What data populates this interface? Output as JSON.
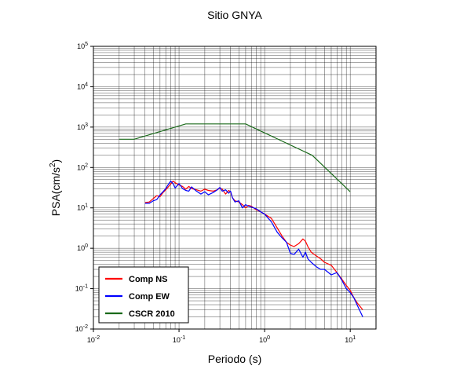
{
  "chart_data": {
    "type": "line",
    "title": "Sitio GNYA",
    "xlabel": "Periodo (s)",
    "ylabel": "PSA(cm/s²)",
    "x_scale": "log",
    "y_scale": "log",
    "xlim": [
      0.01,
      20
    ],
    "ylim": [
      0.01,
      100000
    ],
    "x_tick_labels": [
      {
        "base": "10",
        "exp": "-2",
        "value": 0.01
      },
      {
        "base": "10",
        "exp": "-1",
        "value": 0.1
      },
      {
        "base": "10",
        "exp": "0",
        "value": 1
      },
      {
        "base": "10",
        "exp": "1",
        "value": 10
      }
    ],
    "y_tick_labels": [
      {
        "base": "10",
        "exp": "-2",
        "value": 0.01
      },
      {
        "base": "10",
        "exp": "-1",
        "value": 0.1
      },
      {
        "base": "10",
        "exp": "0",
        "value": 1
      },
      {
        "base": "10",
        "exp": "1",
        "value": 10
      },
      {
        "base": "10",
        "exp": "2",
        "value": 100
      },
      {
        "base": "10",
        "exp": "3",
        "value": 1000
      },
      {
        "base": "10",
        "exp": "4",
        "value": 10000
      },
      {
        "base": "10",
        "exp": "5",
        "value": 100000
      }
    ],
    "grid": true,
    "legend_position": "bottom-left",
    "series": [
      {
        "name": "Comp NS",
        "color": "#ff0000",
        "points": [
          [
            0.04,
            13.5
          ],
          [
            0.045,
            14
          ],
          [
            0.05,
            17
          ],
          [
            0.055,
            20
          ],
          [
            0.06,
            19
          ],
          [
            0.065,
            24
          ],
          [
            0.07,
            28
          ],
          [
            0.075,
            33
          ],
          [
            0.08,
            39
          ],
          [
            0.085,
            46
          ],
          [
            0.09,
            42
          ],
          [
            0.1,
            37
          ],
          [
            0.11,
            34
          ],
          [
            0.12,
            29
          ],
          [
            0.13,
            34
          ],
          [
            0.14,
            30
          ],
          [
            0.16,
            28
          ],
          [
            0.18,
            26
          ],
          [
            0.2,
            29
          ],
          [
            0.22,
            27
          ],
          [
            0.25,
            26
          ],
          [
            0.28,
            28
          ],
          [
            0.3,
            31
          ],
          [
            0.32,
            29
          ],
          [
            0.35,
            22
          ],
          [
            0.38,
            27
          ],
          [
            0.4,
            25
          ],
          [
            0.42,
            18
          ],
          [
            0.45,
            15
          ],
          [
            0.5,
            14
          ],
          [
            0.55,
            12
          ],
          [
            0.6,
            10
          ],
          [
            0.65,
            11.5
          ],
          [
            0.7,
            11
          ],
          [
            0.8,
            9
          ],
          [
            0.9,
            8
          ],
          [
            1.0,
            7
          ],
          [
            1.2,
            5.5
          ],
          [
            1.4,
            3.2
          ],
          [
            1.6,
            2.0
          ],
          [
            1.8,
            1.4
          ],
          [
            2.0,
            1.2
          ],
          [
            2.2,
            1.1
          ],
          [
            2.5,
            1.3
          ],
          [
            2.8,
            1.7
          ],
          [
            3.0,
            1.5
          ],
          [
            3.2,
            1.1
          ],
          [
            3.5,
            0.8
          ],
          [
            4.0,
            0.65
          ],
          [
            4.5,
            0.55
          ],
          [
            5.0,
            0.45
          ],
          [
            6.0,
            0.38
          ],
          [
            7.0,
            0.25
          ],
          [
            8.0,
            0.17
          ],
          [
            9.0,
            0.12
          ],
          [
            10.0,
            0.09
          ],
          [
            11.0,
            0.06
          ],
          [
            12.0,
            0.045
          ],
          [
            14.0,
            0.03
          ]
        ]
      },
      {
        "name": "Comp EW",
        "color": "#0000ff",
        "points": [
          [
            0.04,
            13
          ],
          [
            0.045,
            13
          ],
          [
            0.05,
            15
          ],
          [
            0.055,
            16
          ],
          [
            0.06,
            21
          ],
          [
            0.065,
            25
          ],
          [
            0.07,
            30
          ],
          [
            0.075,
            38
          ],
          [
            0.08,
            46
          ],
          [
            0.085,
            40
          ],
          [
            0.09,
            31
          ],
          [
            0.1,
            40
          ],
          [
            0.11,
            30
          ],
          [
            0.12,
            27
          ],
          [
            0.13,
            26
          ],
          [
            0.14,
            33
          ],
          [
            0.16,
            26
          ],
          [
            0.18,
            22
          ],
          [
            0.2,
            25
          ],
          [
            0.22,
            21
          ],
          [
            0.25,
            24
          ],
          [
            0.28,
            28
          ],
          [
            0.3,
            32
          ],
          [
            0.32,
            26
          ],
          [
            0.35,
            28
          ],
          [
            0.38,
            23
          ],
          [
            0.4,
            26
          ],
          [
            0.42,
            18
          ],
          [
            0.45,
            14
          ],
          [
            0.5,
            15
          ],
          [
            0.55,
            10
          ],
          [
            0.6,
            12
          ],
          [
            0.65,
            11
          ],
          [
            0.7,
            10.5
          ],
          [
            0.8,
            9.5
          ],
          [
            0.9,
            8
          ],
          [
            1.0,
            7
          ],
          [
            1.2,
            4.5
          ],
          [
            1.4,
            2.5
          ],
          [
            1.6,
            1.8
          ],
          [
            1.8,
            1.4
          ],
          [
            2.0,
            0.75
          ],
          [
            2.2,
            0.7
          ],
          [
            2.5,
            0.95
          ],
          [
            2.8,
            0.6
          ],
          [
            3.0,
            0.8
          ],
          [
            3.2,
            0.55
          ],
          [
            3.5,
            0.45
          ],
          [
            4.0,
            0.35
          ],
          [
            4.5,
            0.3
          ],
          [
            5.0,
            0.3
          ],
          [
            6.0,
            0.22
          ],
          [
            7.0,
            0.25
          ],
          [
            8.0,
            0.16
          ],
          [
            9.0,
            0.1
          ],
          [
            10.0,
            0.08
          ],
          [
            11.0,
            0.06
          ],
          [
            12.0,
            0.04
          ],
          [
            14.0,
            0.02
          ]
        ]
      },
      {
        "name": "CSCR 2010",
        "color": "#1a6a1a",
        "points": [
          [
            0.02,
            500
          ],
          [
            0.03,
            500
          ],
          [
            0.12,
            1200
          ],
          [
            0.6,
            1200
          ],
          [
            3.6,
            200
          ],
          [
            10.0,
            25
          ]
        ]
      }
    ]
  }
}
